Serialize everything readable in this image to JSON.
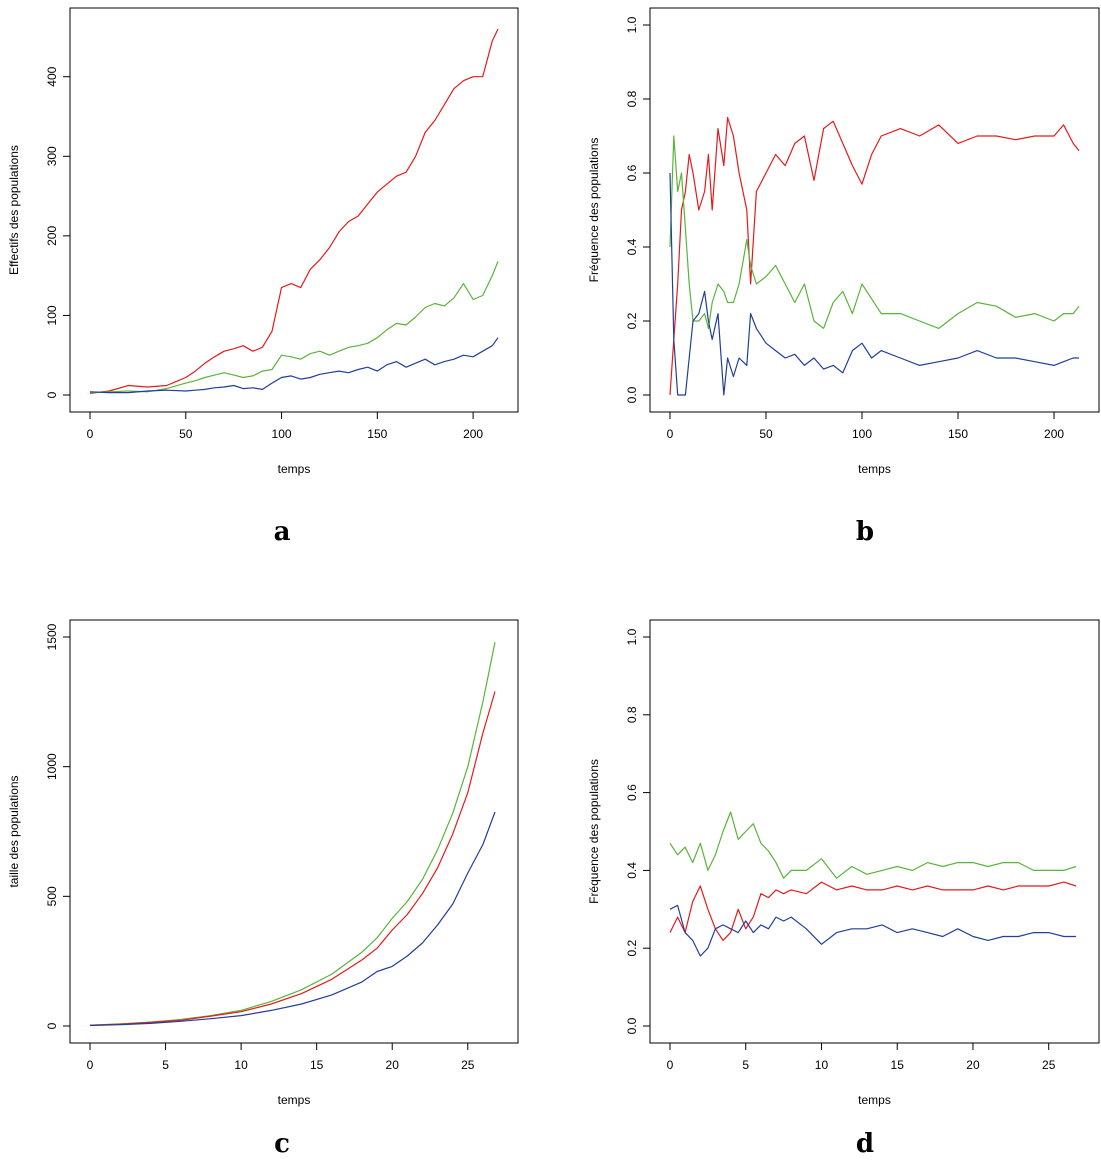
{
  "figure": {
    "colors": {
      "red": "#e41a1c",
      "green": "#5bb33a",
      "blue": "#213f9a"
    }
  },
  "chart_data": [
    {
      "panel": "a",
      "type": "line",
      "xlabel": "temps",
      "ylabel": "Effectifs des populations",
      "xlim": [
        0,
        213
      ],
      "ylim": [
        0,
        465
      ],
      "xticks": [
        0,
        50,
        100,
        150,
        200
      ],
      "yticks": [
        0,
        100,
        200,
        300,
        400
      ],
      "ytick_rotated": true,
      "series": [
        {
          "color": "#e41a1c",
          "x": [
            0,
            10,
            20,
            30,
            40,
            50,
            55,
            60,
            65,
            70,
            75,
            80,
            85,
            90,
            95,
            100,
            105,
            110,
            115,
            120,
            125,
            130,
            135,
            140,
            145,
            150,
            155,
            160,
            165,
            170,
            175,
            180,
            185,
            190,
            195,
            200,
            205,
            210,
            213
          ],
          "y": [
            2,
            5,
            12,
            10,
            12,
            22,
            30,
            40,
            48,
            55,
            58,
            62,
            55,
            60,
            80,
            135,
            140,
            135,
            158,
            170,
            185,
            205,
            218,
            225,
            240,
            255,
            265,
            275,
            280,
            300,
            330,
            345,
            365,
            385,
            395,
            400,
            400,
            445,
            460
          ]
        },
        {
          "color": "#5bb33a",
          "x": [
            0,
            10,
            20,
            30,
            40,
            50,
            55,
            60,
            65,
            70,
            75,
            80,
            85,
            90,
            95,
            100,
            105,
            110,
            115,
            120,
            125,
            130,
            135,
            140,
            145,
            150,
            155,
            160,
            165,
            170,
            175,
            180,
            185,
            190,
            195,
            200,
            205,
            210,
            213
          ],
          "y": [
            3,
            4,
            5,
            4,
            8,
            15,
            18,
            22,
            25,
            28,
            25,
            22,
            24,
            30,
            32,
            50,
            48,
            45,
            52,
            55,
            50,
            55,
            60,
            62,
            65,
            72,
            82,
            90,
            88,
            98,
            110,
            115,
            112,
            122,
            140,
            120,
            125,
            150,
            168
          ]
        },
        {
          "color": "#213f9a",
          "x": [
            0,
            10,
            20,
            30,
            40,
            50,
            55,
            60,
            65,
            70,
            75,
            80,
            85,
            90,
            95,
            100,
            105,
            110,
            115,
            120,
            125,
            130,
            135,
            140,
            145,
            150,
            155,
            160,
            165,
            170,
            175,
            180,
            185,
            190,
            195,
            200,
            205,
            210,
            213
          ],
          "y": [
            4,
            3,
            3,
            5,
            6,
            5,
            6,
            7,
            9,
            10,
            12,
            8,
            9,
            7,
            15,
            22,
            24,
            20,
            22,
            26,
            28,
            30,
            28,
            32,
            35,
            30,
            38,
            42,
            35,
            40,
            45,
            38,
            42,
            45,
            50,
            48,
            55,
            62,
            72
          ]
        }
      ]
    },
    {
      "panel": "b",
      "type": "line",
      "xlabel": "temps",
      "ylabel": "Fréquence des populations",
      "xlim": [
        0,
        213
      ],
      "ylim": [
        0,
        1
      ],
      "xticks": [
        0,
        50,
        100,
        150,
        200
      ],
      "yticks": [
        "0.0",
        "0.2",
        "0.4",
        "0.6",
        "0.8",
        "1.0"
      ],
      "ytick_rotated": true,
      "series": [
        {
          "color": "#e41a1c",
          "x": [
            0,
            2,
            4,
            6,
            8,
            10,
            12,
            15,
            18,
            20,
            22,
            25,
            28,
            30,
            33,
            36,
            40,
            42,
            45,
            50,
            55,
            60,
            65,
            70,
            75,
            80,
            85,
            90,
            95,
            100,
            105,
            110,
            120,
            130,
            140,
            150,
            160,
            170,
            180,
            190,
            200,
            205,
            210,
            213
          ],
          "y": [
            0,
            0.15,
            0.3,
            0.5,
            0.55,
            0.65,
            0.6,
            0.5,
            0.55,
            0.65,
            0.5,
            0.72,
            0.62,
            0.75,
            0.7,
            0.6,
            0.5,
            0.3,
            0.55,
            0.6,
            0.65,
            0.62,
            0.68,
            0.7,
            0.58,
            0.72,
            0.74,
            0.68,
            0.62,
            0.57,
            0.65,
            0.7,
            0.72,
            0.7,
            0.73,
            0.68,
            0.7,
            0.7,
            0.69,
            0.7,
            0.7,
            0.73,
            0.68,
            0.66
          ]
        },
        {
          "color": "#5bb33a",
          "x": [
            0,
            2,
            4,
            6,
            8,
            10,
            12,
            15,
            18,
            20,
            22,
            25,
            28,
            30,
            33,
            36,
            40,
            42,
            45,
            50,
            55,
            60,
            65,
            70,
            75,
            80,
            85,
            90,
            95,
            100,
            105,
            110,
            120,
            130,
            140,
            150,
            160,
            170,
            180,
            190,
            200,
            205,
            210,
            213
          ],
          "y": [
            0.4,
            0.7,
            0.55,
            0.6,
            0.45,
            0.3,
            0.2,
            0.2,
            0.22,
            0.18,
            0.25,
            0.3,
            0.28,
            0.25,
            0.25,
            0.3,
            0.42,
            0.35,
            0.3,
            0.32,
            0.35,
            0.3,
            0.25,
            0.3,
            0.2,
            0.18,
            0.25,
            0.28,
            0.22,
            0.3,
            0.26,
            0.22,
            0.22,
            0.2,
            0.18,
            0.22,
            0.25,
            0.24,
            0.21,
            0.22,
            0.2,
            0.22,
            0.22,
            0.24
          ]
        },
        {
          "color": "#213f9a",
          "x": [
            0,
            2,
            4,
            6,
            8,
            10,
            12,
            15,
            18,
            20,
            22,
            25,
            28,
            30,
            33,
            36,
            40,
            42,
            45,
            50,
            55,
            60,
            65,
            70,
            75,
            80,
            85,
            90,
            95,
            100,
            105,
            110,
            120,
            130,
            140,
            150,
            160,
            170,
            180,
            190,
            200,
            205,
            210,
            213
          ],
          "y": [
            0.6,
            0.15,
            0,
            0,
            0,
            0.1,
            0.2,
            0.22,
            0.28,
            0.2,
            0.15,
            0.22,
            0,
            0.1,
            0.05,
            0.1,
            0.08,
            0.22,
            0.18,
            0.14,
            0.12,
            0.1,
            0.11,
            0.08,
            0.1,
            0.07,
            0.08,
            0.06,
            0.12,
            0.14,
            0.1,
            0.12,
            0.1,
            0.08,
            0.09,
            0.1,
            0.12,
            0.1,
            0.1,
            0.09,
            0.08,
            0.09,
            0.1,
            0.1
          ]
        }
      ]
    },
    {
      "panel": "c",
      "type": "line",
      "xlabel": "temps",
      "ylabel": "taille des populations",
      "xlim": [
        0,
        27
      ],
      "ylim": [
        0,
        1500
      ],
      "xticks": [
        0,
        5,
        10,
        15,
        20,
        25
      ],
      "yticks": [
        0,
        500,
        1000,
        1500
      ],
      "ytick_rotated": true,
      "series": [
        {
          "color": "#5bb33a",
          "x": [
            0,
            2,
            4,
            6,
            8,
            10,
            12,
            14,
            16,
            18,
            19,
            20,
            21,
            22,
            23,
            24,
            25,
            26,
            26.8
          ],
          "y": [
            3,
            8,
            15,
            25,
            40,
            60,
            95,
            140,
            200,
            285,
            340,
            415,
            480,
            565,
            680,
            820,
            1000,
            1250,
            1480
          ]
        },
        {
          "color": "#e41a1c",
          "x": [
            0,
            2,
            4,
            6,
            8,
            10,
            12,
            14,
            16,
            18,
            19,
            20,
            21,
            22,
            23,
            24,
            25,
            26,
            26.8
          ],
          "y": [
            3,
            7,
            14,
            22,
            38,
            55,
            85,
            125,
            180,
            255,
            300,
            370,
            430,
            510,
            610,
            740,
            900,
            1130,
            1290
          ]
        },
        {
          "color": "#213f9a",
          "x": [
            0,
            2,
            4,
            6,
            8,
            10,
            12,
            14,
            16,
            18,
            19,
            20,
            21,
            22,
            23,
            24,
            25,
            26,
            26.8
          ],
          "y": [
            2,
            5,
            10,
            18,
            28,
            40,
            60,
            85,
            120,
            170,
            210,
            230,
            270,
            320,
            390,
            470,
            590,
            700,
            825
          ]
        }
      ]
    },
    {
      "panel": "d",
      "type": "line",
      "xlabel": "temps",
      "ylabel": "Fréquence des populations",
      "xlim": [
        0,
        27
      ],
      "ylim": [
        0,
        1
      ],
      "xticks": [
        0,
        5,
        10,
        15,
        20,
        25
      ],
      "yticks": [
        "0.0",
        "0.2",
        "0.4",
        "0.6",
        "0.8",
        "1.0"
      ],
      "ytick_rotated": true,
      "series": [
        {
          "color": "#5bb33a",
          "x": [
            0,
            0.5,
            1,
            1.5,
            2,
            2.5,
            3,
            3.5,
            4,
            4.5,
            5,
            5.5,
            6,
            6.5,
            7,
            7.5,
            8,
            9,
            10,
            11,
            12,
            13,
            14,
            15,
            16,
            17,
            18,
            19,
            20,
            21,
            22,
            23,
            24,
            25,
            26,
            26.8
          ],
          "y": [
            0.47,
            0.44,
            0.46,
            0.42,
            0.47,
            0.4,
            0.44,
            0.5,
            0.55,
            0.48,
            0.5,
            0.52,
            0.47,
            0.45,
            0.42,
            0.38,
            0.4,
            0.4,
            0.43,
            0.38,
            0.41,
            0.39,
            0.4,
            0.41,
            0.4,
            0.42,
            0.41,
            0.42,
            0.42,
            0.41,
            0.42,
            0.42,
            0.4,
            0.4,
            0.4,
            0.41
          ]
        },
        {
          "color": "#e41a1c",
          "x": [
            0,
            0.5,
            1,
            1.5,
            2,
            2.5,
            3,
            3.5,
            4,
            4.5,
            5,
            5.5,
            6,
            6.5,
            7,
            7.5,
            8,
            9,
            10,
            11,
            12,
            13,
            14,
            15,
            16,
            17,
            18,
            19,
            20,
            21,
            22,
            23,
            24,
            25,
            26,
            26.8
          ],
          "y": [
            0.24,
            0.28,
            0.24,
            0.32,
            0.36,
            0.3,
            0.25,
            0.22,
            0.24,
            0.3,
            0.25,
            0.28,
            0.34,
            0.33,
            0.35,
            0.34,
            0.35,
            0.34,
            0.37,
            0.35,
            0.36,
            0.35,
            0.35,
            0.36,
            0.35,
            0.36,
            0.35,
            0.35,
            0.35,
            0.36,
            0.35,
            0.36,
            0.36,
            0.36,
            0.37,
            0.36
          ]
        },
        {
          "color": "#213f9a",
          "x": [
            0,
            0.5,
            1,
            1.5,
            2,
            2.5,
            3,
            3.5,
            4,
            4.5,
            5,
            5.5,
            6,
            6.5,
            7,
            7.5,
            8,
            9,
            10,
            11,
            12,
            13,
            14,
            15,
            16,
            17,
            18,
            19,
            20,
            21,
            22,
            23,
            24,
            25,
            26,
            26.8
          ],
          "y": [
            0.3,
            0.31,
            0.24,
            0.22,
            0.18,
            0.2,
            0.25,
            0.26,
            0.25,
            0.24,
            0.27,
            0.24,
            0.26,
            0.25,
            0.28,
            0.27,
            0.28,
            0.25,
            0.21,
            0.24,
            0.25,
            0.25,
            0.26,
            0.24,
            0.25,
            0.24,
            0.23,
            0.25,
            0.23,
            0.22,
            0.23,
            0.23,
            0.24,
            0.24,
            0.23,
            0.23
          ]
        }
      ]
    }
  ]
}
